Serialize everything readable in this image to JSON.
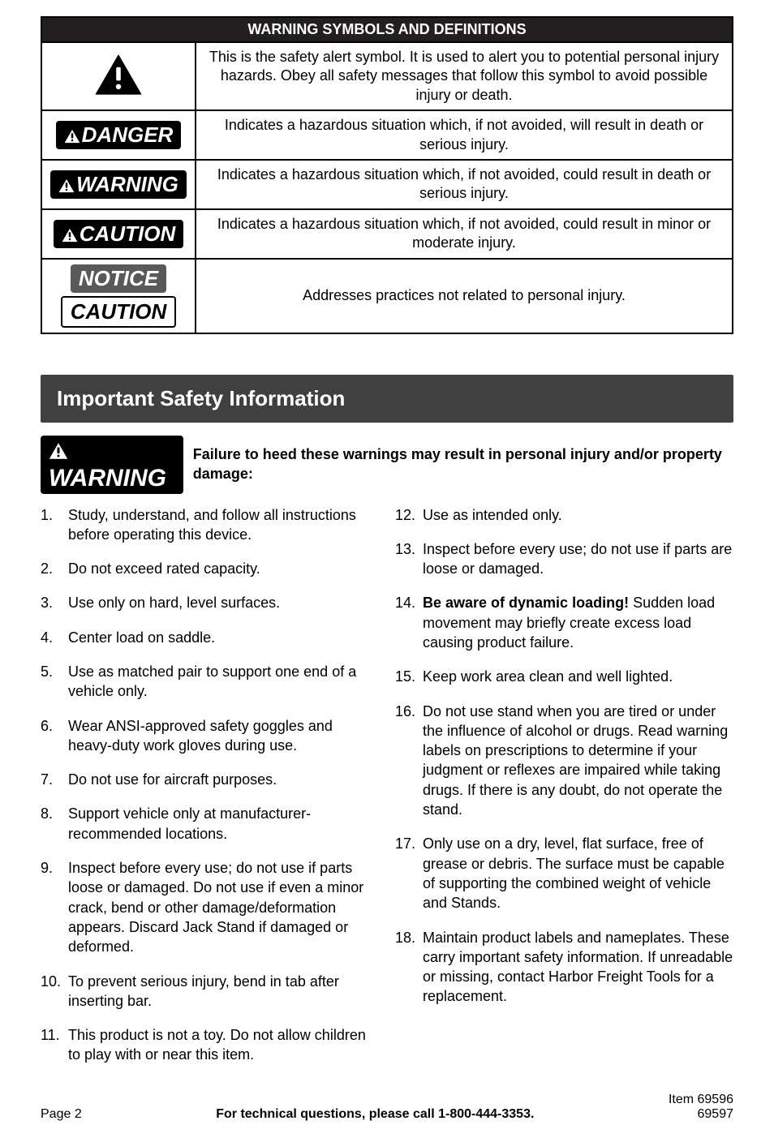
{
  "warning_table": {
    "header": "WARNING SYMBOLS AND DEFINITIONS",
    "rows": [
      {
        "icon": "alert-triangle",
        "badge": null,
        "desc": "This is the safety alert symbol.  It is used to alert you to potential personal injury hazards.  Obey all safety messages that follow this symbol to avoid possible injury or death."
      },
      {
        "badge": {
          "label": "DANGER",
          "style": "black",
          "tri": true
        },
        "desc": "Indicates a hazardous situation which, if not avoided, will result in death or serious injury."
      },
      {
        "badge": {
          "label": "WARNING",
          "style": "black",
          "tri": true
        },
        "desc": "Indicates a hazardous situation which, if not avoided, could result in death or serious injury."
      },
      {
        "badge": {
          "label": "CAUTION",
          "style": "black",
          "tri": true
        },
        "desc": "Indicates a hazardous situation which, if not avoided, could result in minor or moderate injury."
      },
      {
        "badge_stack": [
          {
            "label": "NOTICE",
            "style": "grey",
            "tri": false
          },
          {
            "label": "CAUTION",
            "style": "white",
            "tri": false
          }
        ],
        "desc": "Addresses practices not related to personal injury."
      }
    ]
  },
  "section_title": "Important Safety Information",
  "inline_warning": {
    "badge": {
      "label": "WARNING",
      "style": "black",
      "tri": true
    },
    "text": "Failure to heed these warnings may result in personal injury and/or property damage:"
  },
  "left_items": [
    {
      "n": "1.",
      "text": "Study, understand, and follow all instructions before operating this device."
    },
    {
      "n": "2.",
      "text": "Do not exceed rated capacity."
    },
    {
      "n": "3.",
      "text": "Use only on hard, level surfaces."
    },
    {
      "n": "4.",
      "text": "Center load on saddle."
    },
    {
      "n": "5.",
      "text": "Use as matched pair to support one end of a vehicle only."
    },
    {
      "n": "6.",
      "text": "Wear ANSI-approved safety goggles and heavy-duty work gloves during use."
    },
    {
      "n": "7.",
      "text": "Do not use for aircraft purposes."
    },
    {
      "n": "8.",
      "text": "Support vehicle only at manufacturer-recommended locations."
    },
    {
      "n": "9.",
      "text": "Inspect before every use; do not use if parts loose or damaged.  Do not use if even a minor crack, bend or other damage/deformation appears. Discard Jack Stand if damaged or deformed."
    },
    {
      "n": "10.",
      "text": "To prevent serious injury, bend in tab after inserting bar."
    },
    {
      "n": "11.",
      "text": "This product is not a toy.  Do not allow children to play with or near this item."
    }
  ],
  "right_items": [
    {
      "n": "12.",
      "text": "Use as intended only."
    },
    {
      "n": "13.",
      "text": "Inspect before every use; do not use if parts are loose or damaged."
    },
    {
      "n": "14.",
      "bold_lead": "Be aware of dynamic loading!",
      "text": "  Sudden load movement may briefly create excess load causing product failure."
    },
    {
      "n": "15.",
      "text": "Keep work area clean and well lighted."
    },
    {
      "n": "16.",
      "text": "Do not use stand when you are tired or under the influence of alcohol or drugs.  Read warning labels on prescriptions to determine if your judgment or reflexes are impaired while taking drugs. If there is any doubt, do not operate the stand."
    },
    {
      "n": "17.",
      "text": "Only use on a dry, level, flat surface, free of grease or debris.  The surface must be capable of supporting the combined weight of vehicle and Stands."
    },
    {
      "n": "18.",
      "text": "Maintain product labels and nameplates.  These carry important safety information.  If unreadable or missing, contact Harbor Freight Tools for a replacement."
    }
  ],
  "footer": {
    "left": "Page 2",
    "center": "For technical questions, please call 1-800-444-3353.",
    "right1": "Item 69596",
    "right2": "69597"
  },
  "colors": {
    "header_bg": "#231f20",
    "section_bg": "#404041",
    "grey_badge": "#595959"
  }
}
